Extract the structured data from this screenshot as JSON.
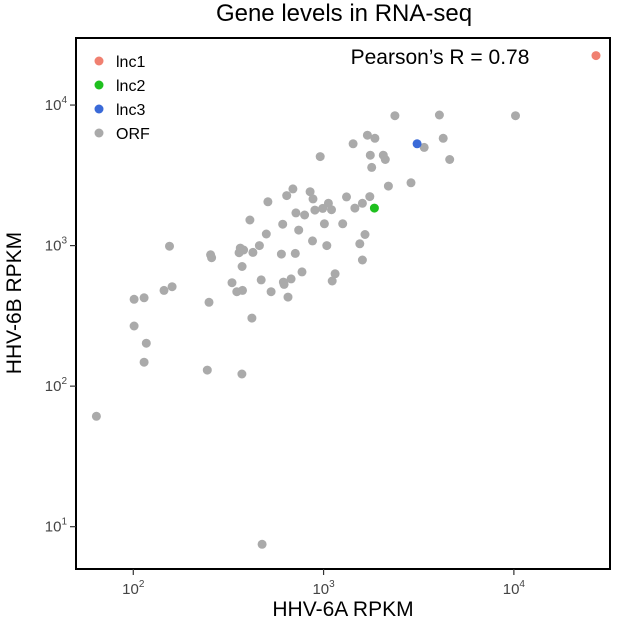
{
  "chart_data": {
    "type": "scatter",
    "title": "Gene levels in RNA-seq",
    "xlabel": "HHV-6A RPKM",
    "ylabel": "HHV-6B RPKM",
    "xscale": "log",
    "yscale": "log",
    "xlim": [
      50,
      32000
    ],
    "ylim": [
      5,
      30000
    ],
    "grid": false,
    "legend_position": "top-left",
    "annotation": "Pearson’s R = 0.78",
    "x_ticks": [
      {
        "base": "10",
        "exp": "2",
        "value": 100
      },
      {
        "base": "10",
        "exp": "3",
        "value": 1000
      },
      {
        "base": "10",
        "exp": "4",
        "value": 10000
      }
    ],
    "y_ticks": [
      {
        "base": "10",
        "exp": "1",
        "value": 10
      },
      {
        "base": "10",
        "exp": "2",
        "value": 100
      },
      {
        "base": "10",
        "exp": "3",
        "value": 1000
      },
      {
        "base": "10",
        "exp": "4",
        "value": 10000
      }
    ],
    "series": [
      {
        "name": "lnc1",
        "color": "#f08070",
        "points": [
          [
            27000,
            22500
          ]
        ]
      },
      {
        "name": "lnc2",
        "color": "#1fc01f",
        "points": [
          [
            1850,
            1850
          ]
        ]
      },
      {
        "name": "lnc3",
        "color": "#3a6ad8",
        "points": [
          [
            3100,
            5300
          ]
        ]
      },
      {
        "name": "ORF",
        "color": "#aaaaaa",
        "points": [
          [
            64,
            61
          ],
          [
            101,
            415
          ],
          [
            101,
            268
          ],
          [
            114,
            148
          ],
          [
            114,
            425
          ],
          [
            117,
            202
          ],
          [
            145,
            480
          ],
          [
            155,
            990
          ],
          [
            160,
            510
          ],
          [
            245,
            130
          ],
          [
            250,
            395
          ],
          [
            255,
            860
          ],
          [
            258,
            820
          ],
          [
            330,
            545
          ],
          [
            350,
            470
          ],
          [
            360,
            890
          ],
          [
            365,
            960
          ],
          [
            372,
            122
          ],
          [
            373,
            710
          ],
          [
            375,
            480
          ],
          [
            380,
            930
          ],
          [
            410,
            1520
          ],
          [
            420,
            305
          ],
          [
            425,
            895
          ],
          [
            460,
            1000
          ],
          [
            470,
            570
          ],
          [
            475,
            7.5
          ],
          [
            500,
            1210
          ],
          [
            510,
            2050
          ],
          [
            530,
            470
          ],
          [
            600,
            870
          ],
          [
            610,
            1420
          ],
          [
            615,
            550
          ],
          [
            620,
            530
          ],
          [
            640,
            2270
          ],
          [
            650,
            430
          ],
          [
            675,
            580
          ],
          [
            690,
            2530
          ],
          [
            710,
            880
          ],
          [
            715,
            1710
          ],
          [
            740,
            1290
          ],
          [
            770,
            650
          ],
          [
            795,
            1650
          ],
          [
            850,
            2420
          ],
          [
            875,
            1080
          ],
          [
            880,
            2150
          ],
          [
            900,
            1790
          ],
          [
            960,
            4300
          ],
          [
            990,
            1840
          ],
          [
            1010,
            1430
          ],
          [
            1040,
            1000
          ],
          [
            1060,
            2000
          ],
          [
            1100,
            1800
          ],
          [
            1110,
            560
          ],
          [
            1150,
            630
          ],
          [
            1260,
            1430
          ],
          [
            1320,
            2220
          ],
          [
            1430,
            5300
          ],
          [
            1460,
            1850
          ],
          [
            1550,
            1030
          ],
          [
            1600,
            790
          ],
          [
            1600,
            2000
          ],
          [
            1650,
            1200
          ],
          [
            1700,
            6100
          ],
          [
            1750,
            2230
          ],
          [
            1760,
            4400
          ],
          [
            1790,
            3600
          ],
          [
            1860,
            5800
          ],
          [
            2060,
            4400
          ],
          [
            2110,
            4100
          ],
          [
            2190,
            2650
          ],
          [
            2370,
            8400
          ],
          [
            2880,
            2800
          ],
          [
            3380,
            5000
          ],
          [
            4060,
            8500
          ],
          [
            4250,
            5800
          ],
          [
            4600,
            4100
          ],
          [
            10200,
            8400
          ]
        ]
      }
    ]
  }
}
